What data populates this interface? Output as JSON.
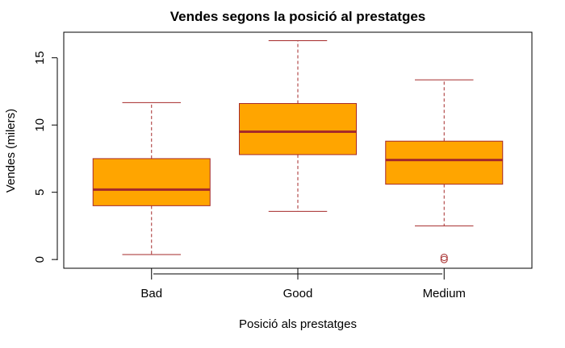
{
  "chart_data": {
    "type": "box",
    "title": "Vendes segons la posició al prestatges",
    "xlabel": "Posició als prestatges",
    "ylabel": "Vendes (milers)",
    "categories": [
      "Bad",
      "Good",
      "Medium"
    ],
    "ylim": [
      -0.65,
      16.9
    ],
    "yticks": [
      0,
      5,
      10,
      15
    ],
    "boxes": [
      {
        "name": "Bad",
        "min": 0.37,
        "q1": 4.0,
        "median": 5.2,
        "q3": 7.5,
        "max": 11.67,
        "outliers": []
      },
      {
        "name": "Good",
        "min": 3.58,
        "q1": 7.8,
        "median": 9.5,
        "q3": 11.6,
        "max": 16.27,
        "outliers": []
      },
      {
        "name": "Medium",
        "min": 2.5,
        "q1": 5.6,
        "median": 7.4,
        "q3": 8.8,
        "max": 13.36,
        "outliers": [
          0.0,
          0.16
        ]
      }
    ],
    "colors": {
      "box_fill": "#FFA500",
      "box_border": "#A52A2A",
      "median": "#A52A2A",
      "whisker": "#A52A2A",
      "outlier": "#A52A2A"
    },
    "grid": false,
    "legend": "none"
  }
}
